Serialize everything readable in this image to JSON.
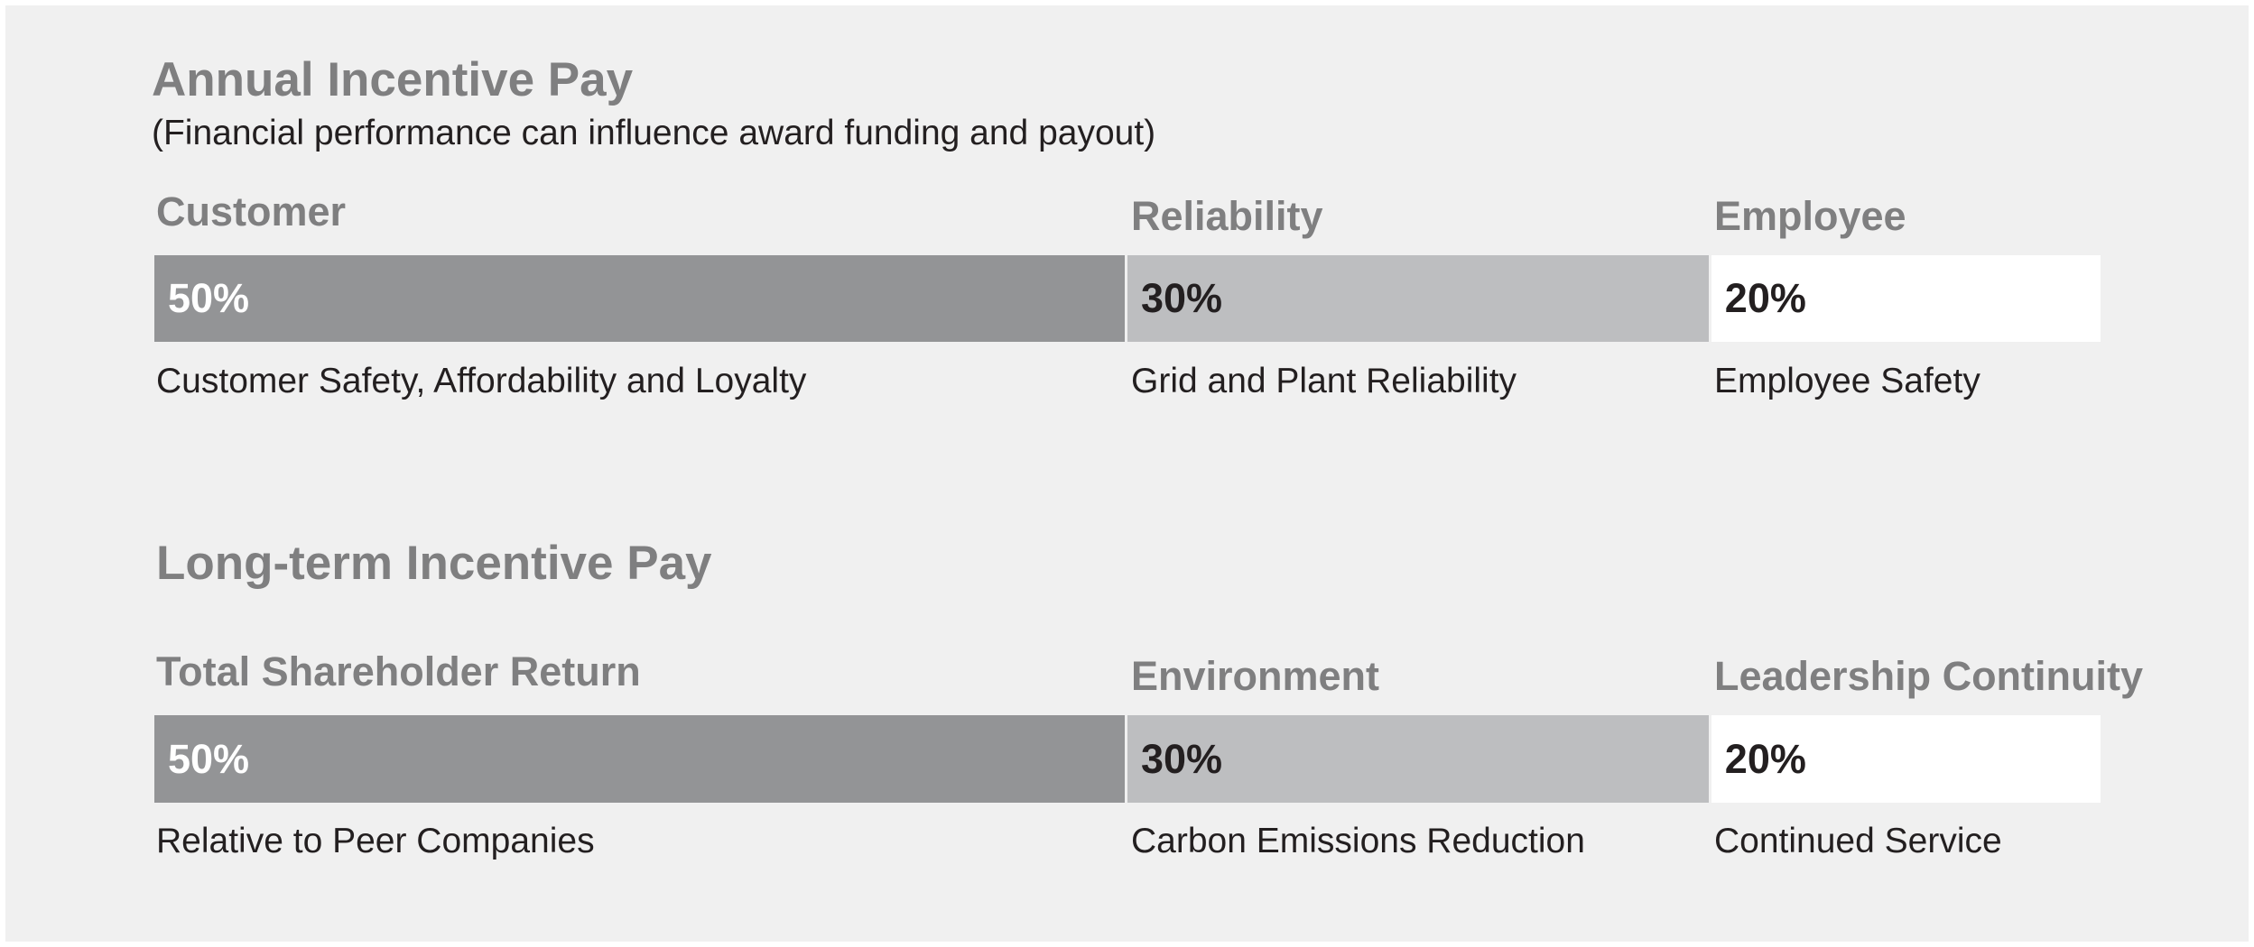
{
  "chart_data": [
    {
      "type": "bar",
      "title": "Annual Incentive Pay",
      "subtitle": "(Financial performance can influence award funding and payout)",
      "stacked": true,
      "unit": "%",
      "series": [
        {
          "name": "Customer",
          "value": 50,
          "value_label": "50%",
          "description": "Customer Safety, Affordability and Loyalty",
          "color": "#939496"
        },
        {
          "name": "Reliability",
          "value": 30,
          "value_label": "30%",
          "description": "Grid and Plant Reliability",
          "color": "#bdbec0"
        },
        {
          "name": "Employee",
          "value": 20,
          "value_label": "20%",
          "description": "Employee Safety",
          "color": "#ffffff"
        }
      ]
    },
    {
      "type": "bar",
      "title": "Long-term Incentive Pay",
      "stacked": true,
      "unit": "%",
      "series": [
        {
          "name": "Total Shareholder Return",
          "value": 50,
          "value_label": "50%",
          "description": "Relative to Peer Companies",
          "color": "#939496"
        },
        {
          "name": "Environment",
          "value": 30,
          "value_label": "30%",
          "description": "Carbon Emissions Reduction",
          "color": "#bdbec0"
        },
        {
          "name": "Leadership Continuity",
          "value": 20,
          "value_label": "20%",
          "description": "Continued Service",
          "color": "#ffffff"
        }
      ]
    }
  ]
}
